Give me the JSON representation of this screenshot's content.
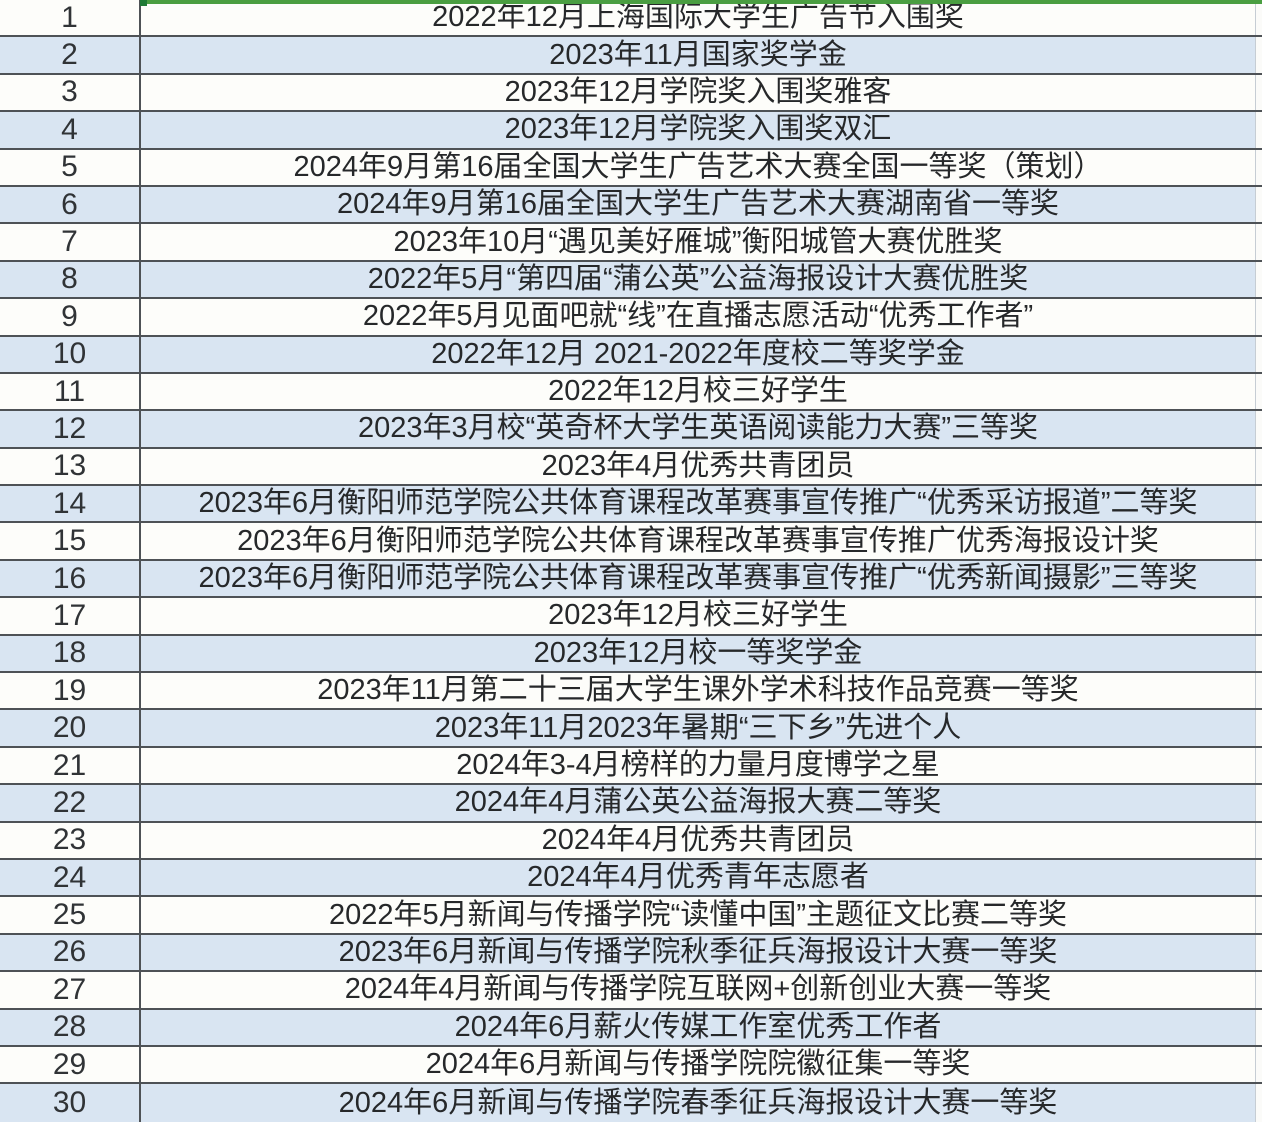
{
  "app": {
    "kind": "spreadsheet-award-list"
  },
  "colors": {
    "row_alt": "#d9e5f2",
    "row_base": "#fdfdfa",
    "grid": "#4e5256",
    "selection_green": "#4a9e41",
    "selection_green_dark": "#1f7a35",
    "text": "#26282a"
  },
  "table": {
    "rows": [
      {
        "num": "1",
        "text": "2022年12月上海国际大学生广告节入围奖"
      },
      {
        "num": "2",
        "text": "2023年11月国家奖学金"
      },
      {
        "num": "3",
        "text": "2023年12月学院奖入围奖雅客"
      },
      {
        "num": "4",
        "text": "2023年12月学院奖入围奖双汇"
      },
      {
        "num": "5",
        "text": "2024年9月第16届全国大学生广告艺术大赛全国一等奖（策划）"
      },
      {
        "num": "6",
        "text": "2024年9月第16届全国大学生广告艺术大赛湖南省一等奖"
      },
      {
        "num": "7",
        "text": "2023年10月“遇见美好雁城”衡阳城管大赛优胜奖"
      },
      {
        "num": "8",
        "text": "2022年5月“第四届“蒲公英”公益海报设计大赛优胜奖"
      },
      {
        "num": "9",
        "text": "2022年5月见面吧就“线”在直播志愿活动“优秀工作者”"
      },
      {
        "num": "10",
        "text": "2022年12月 2021-2022年度校二等奖学金"
      },
      {
        "num": "11",
        "text": "2022年12月校三好学生"
      },
      {
        "num": "12",
        "text": "2023年3月校“英奇杯大学生英语阅读能力大赛”三等奖"
      },
      {
        "num": "13",
        "text": "2023年4月优秀共青团员"
      },
      {
        "num": "14",
        "text": "2023年6月衡阳师范学院公共体育课程改革赛事宣传推广“优秀采访报道”二等奖"
      },
      {
        "num": "15",
        "text": "2023年6月衡阳师范学院公共体育课程改革赛事宣传推广优秀海报设计奖"
      },
      {
        "num": "16",
        "text": "2023年6月衡阳师范学院公共体育课程改革赛事宣传推广“优秀新闻摄影”三等奖"
      },
      {
        "num": "17",
        "text": "2023年12月校三好学生"
      },
      {
        "num": "18",
        "text": "2023年12月校一等奖学金"
      },
      {
        "num": "19",
        "text": "2023年11月第二十三届大学生课外学术科技作品竞赛一等奖"
      },
      {
        "num": "20",
        "text": "2023年11月2023年暑期“三下乡”先进个人"
      },
      {
        "num": "21",
        "text": "2024年3-4月榜样的力量月度博学之星"
      },
      {
        "num": "22",
        "text": "2024年4月蒲公英公益海报大赛二等奖"
      },
      {
        "num": "23",
        "text": "2024年4月优秀共青团员"
      },
      {
        "num": "24",
        "text": "2024年4月优秀青年志愿者"
      },
      {
        "num": "25",
        "text": "2022年5月新闻与传播学院“读懂中国”主题征文比赛二等奖"
      },
      {
        "num": "26",
        "text": "2023年6月新闻与传播学院秋季征兵海报设计大赛一等奖"
      },
      {
        "num": "27",
        "text": "2024年4月新闻与传播学院互联网+创新创业大赛一等奖"
      },
      {
        "num": "28",
        "text": "2024年6月薪火传媒工作室优秀工作者"
      },
      {
        "num": "29",
        "text": "2024年6月新闻与传播学院院徽征集一等奖"
      },
      {
        "num": "30",
        "text": "2024年6月新闻与传播学院春季征兵海报设计大赛一等奖"
      }
    ]
  }
}
